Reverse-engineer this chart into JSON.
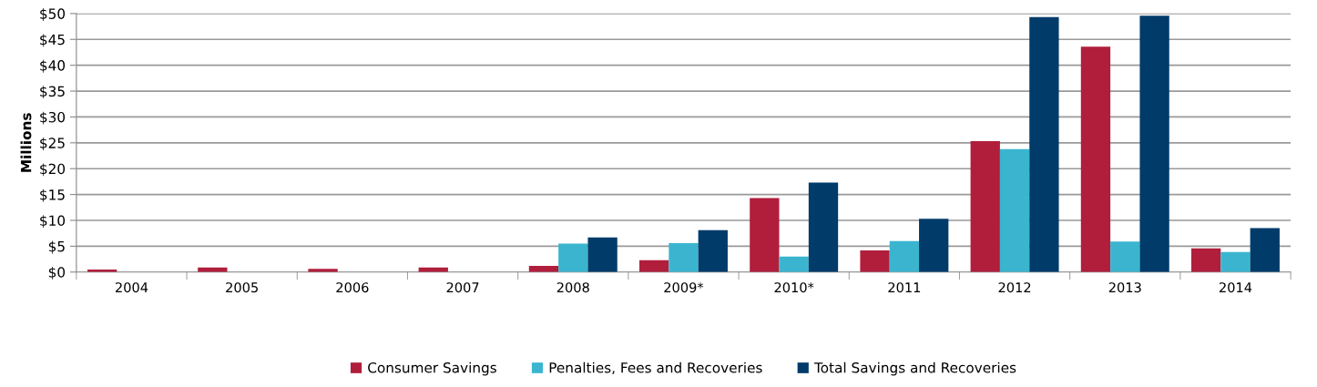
{
  "chart_data": {
    "type": "bar",
    "ylabel": "Millions",
    "categories": [
      "2004",
      "2005",
      "2006",
      "2007",
      "2008",
      "2009*",
      "2010*",
      "2011",
      "2012",
      "2013",
      "2014"
    ],
    "series": [
      {
        "name": "Consumer Savings",
        "color": "#b01e3c",
        "values": [
          0.5,
          0.9,
          0.6,
          0.9,
          1.2,
          2.3,
          14.3,
          4.2,
          25.3,
          43.6,
          4.6
        ]
      },
      {
        "name": "Penalties, Fees and Recoveries",
        "color": "#3bb5cf",
        "values": [
          null,
          null,
          null,
          null,
          5.5,
          5.6,
          3.0,
          6.0,
          23.8,
          5.9,
          3.9
        ]
      },
      {
        "name": "Total Savings and Recoveries",
        "color": "#003b6a",
        "values": [
          null,
          null,
          null,
          null,
          6.7,
          8.1,
          17.3,
          10.3,
          49.3,
          49.6,
          8.5
        ]
      }
    ],
    "ylim": [
      0,
      50
    ],
    "yticks": [
      {
        "value": 0,
        "label": "$0"
      },
      {
        "value": 5,
        "label": "$5"
      },
      {
        "value": 10,
        "label": "$10"
      },
      {
        "value": 15,
        "label": "$15"
      },
      {
        "value": 20,
        "label": "$20"
      },
      {
        "value": 25,
        "label": "$25"
      },
      {
        "value": 30,
        "label": "$30"
      },
      {
        "value": 35,
        "label": "$35"
      },
      {
        "value": 40,
        "label": "$40"
      },
      {
        "value": 45,
        "label": "$45"
      },
      {
        "value": 50,
        "label": "$50"
      }
    ],
    "grid": "y",
    "legend": "bottom"
  }
}
